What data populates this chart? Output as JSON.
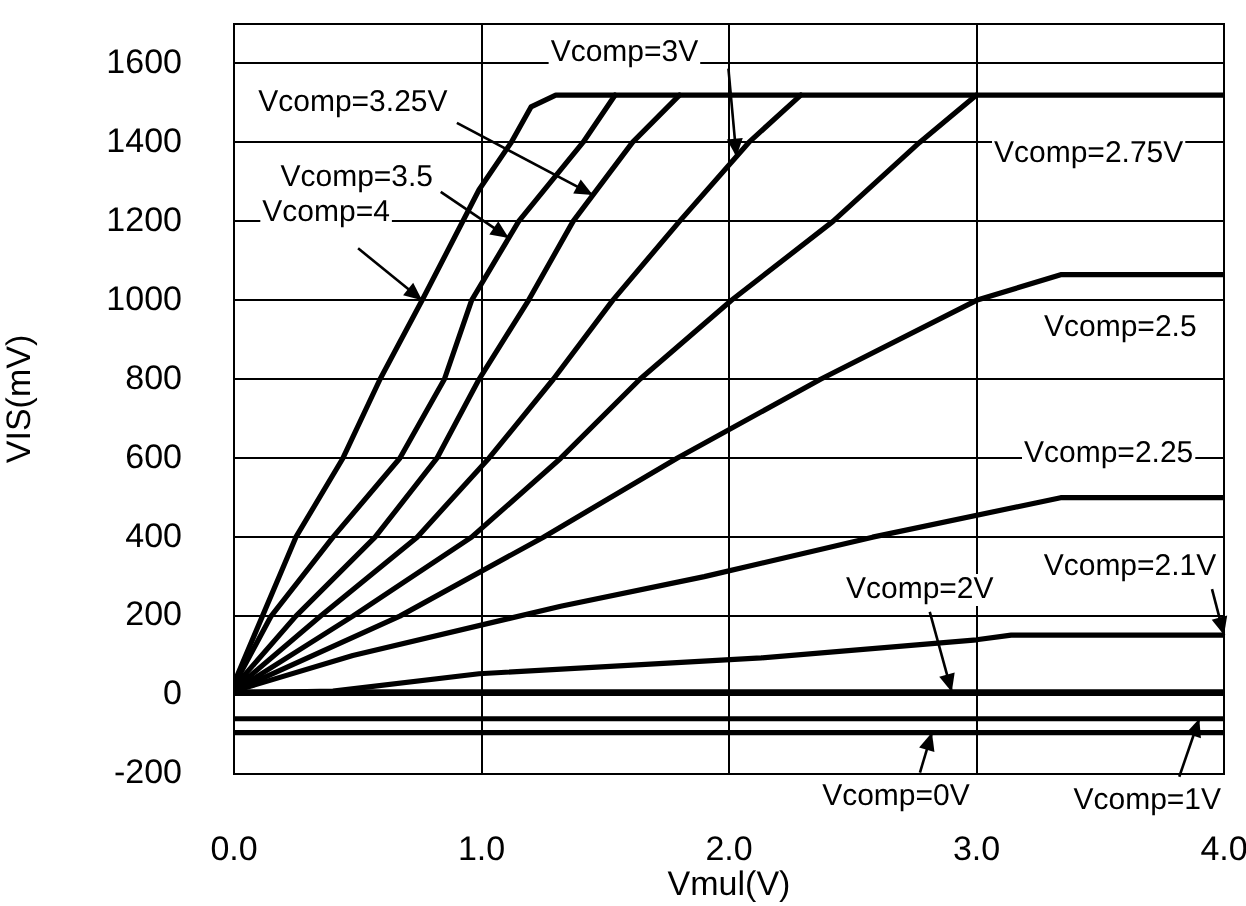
{
  "chart_data": {
    "type": "line",
    "xlabel": "Vmul(V)",
    "ylabel": "VIS(mV)",
    "xlim": [
      0,
      4
    ],
    "ylim": [
      -200,
      1700
    ],
    "xticks": [
      {
        "value": 0,
        "label": "0.0"
      },
      {
        "value": 1,
        "label": "1.0"
      },
      {
        "value": 2,
        "label": "2.0"
      },
      {
        "value": 3,
        "label": "3.0"
      },
      {
        "value": 4,
        "label": "4.0"
      }
    ],
    "yticks": [
      -200,
      0,
      200,
      400,
      600,
      800,
      1000,
      1200,
      1400,
      1600
    ],
    "grid": true,
    "legend": false,
    "marker": "none",
    "line_style": "solid",
    "series": [
      {
        "color": "#000000",
        "x": [
          0,
          0.25,
          0.44,
          0.59,
          0.76,
          0.99,
          1.12,
          1.2,
          1.3,
          4
        ],
        "values": [
          30,
          400,
          600,
          800,
          1000,
          1280,
          1400,
          1490,
          1520,
          1520
        ]
      },
      {
        "color": "#000000",
        "x": [
          0,
          0.15,
          0.4,
          0.67,
          0.85,
          0.96,
          1.15,
          1.41,
          1.54
        ],
        "values": [
          25,
          200,
          400,
          600,
          800,
          1000,
          1200,
          1400,
          1520
        ]
      },
      {
        "color": "#000000",
        "x": [
          0,
          0.25,
          0.57,
          0.82,
          0.99,
          1.19,
          1.37,
          1.61,
          1.8
        ],
        "values": [
          20,
          200,
          400,
          600,
          800,
          1000,
          1200,
          1400,
          1520
        ]
      },
      {
        "color": "#000000",
        "x": [
          0,
          0.35,
          0.74,
          1.03,
          1.29,
          1.53,
          1.8,
          2.08,
          2.29
        ],
        "values": [
          14,
          200,
          400,
          600,
          800,
          1000,
          1200,
          1400,
          1520
        ]
      },
      {
        "color": "#000000",
        "x": [
          0,
          0.48,
          0.96,
          1.32,
          1.64,
          2.01,
          2.42,
          2.77,
          3.0
        ],
        "values": [
          10,
          200,
          400,
          600,
          800,
          1000,
          1200,
          1400,
          1520
        ]
      },
      {
        "color": "#000000",
        "x": [
          0,
          0.67,
          1.25,
          1.79,
          2.37,
          3.0,
          3.34,
          4
        ],
        "values": [
          10,
          200,
          400,
          600,
          800,
          1000,
          1065,
          1065
        ]
      },
      {
        "color": "#000000",
        "x": [
          0,
          0.48,
          1.32,
          1.9,
          2.58,
          3.34,
          4
        ],
        "values": [
          10,
          100,
          225,
          300,
          400,
          500,
          500
        ]
      },
      {
        "color": "#000000",
        "x": [
          0,
          0.4,
          0.99,
          2.13,
          3.0,
          3.14,
          4
        ],
        "values": [
          5,
          10,
          54,
          94,
          140,
          152,
          152
        ]
      },
      {
        "color": "#000000",
        "x": [
          0,
          4
        ],
        "values": [
          8,
          8
        ]
      },
      {
        "color": "#000000",
        "x": [
          0,
          4
        ],
        "values": [
          -60,
          -60
        ]
      },
      {
        "color": "#000000",
        "x": [
          0,
          4
        ],
        "values": [
          -95,
          -95
        ]
      }
    ],
    "annotations": [
      {
        "text": "Vcomp=3V",
        "x": 2.03,
        "y": 1364
      },
      {
        "text": "Vcomp=3.25V",
        "x": 1.45,
        "y": 1267
      },
      {
        "text": "Vcomp=3.5",
        "x": 1.11,
        "y": 1158
      },
      {
        "text": "Vcomp=4",
        "x": 0.76,
        "y": 1000
      },
      "Vcomp=2.75V",
      "Vcomp=2.5",
      "Vcomp=2.25",
      {
        "text": "Vcomp=2.1V",
        "x": 4,
        "y": 152
      },
      {
        "text": "Vcomp=2V",
        "x": 2.9,
        "y": 8
      },
      {
        "text": "Vcomp=0V",
        "x": 2.82,
        "y": -95
      },
      {
        "text": "Vcomp=1V",
        "x": 3.9,
        "y": -60
      }
    ]
  }
}
